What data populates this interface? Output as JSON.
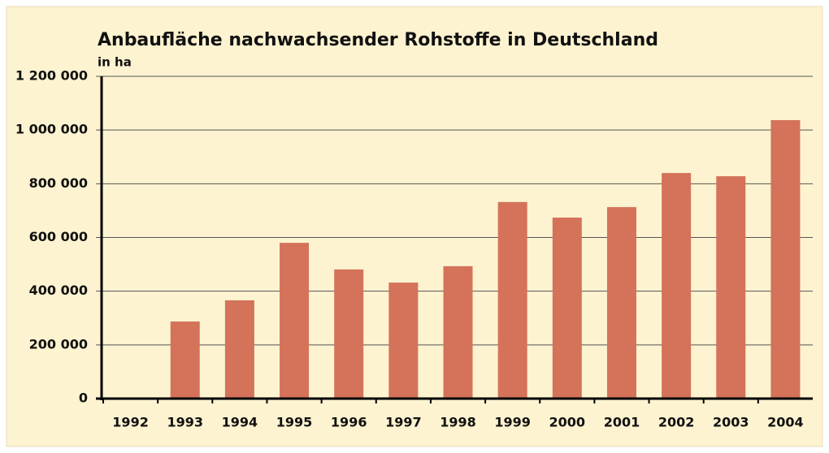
{
  "chart_data": {
    "type": "bar",
    "title": "Anbaufläche nachwachsender Rohstoffe in Deutschland",
    "subtitle": "in ha",
    "categories": [
      "1992",
      "1993",
      "1994",
      "1995",
      "1996",
      "1997",
      "1998",
      "1999",
      "2000",
      "2001",
      "2002",
      "2003",
      "2004"
    ],
    "values": [
      null,
      287000,
      366000,
      580000,
      481000,
      432000,
      493000,
      732000,
      674000,
      713000,
      840000,
      828000,
      1037000
    ],
    "color": "#d4735a",
    "ylim": [
      0,
      1200000
    ],
    "yticks": [
      0,
      {
        "value": 200000,
        "label": "200 000"
      },
      {
        "value": 400000,
        "label": "400 000"
      },
      {
        "value": 600000,
        "label": "600 000"
      },
      {
        "value": 800000,
        "label": "800 000"
      },
      {
        "value": 1000000,
        "label": "1 000 000"
      },
      {
        "value": 1200000,
        "label": "1 200 000"
      }
    ],
    "grid": true
  }
}
